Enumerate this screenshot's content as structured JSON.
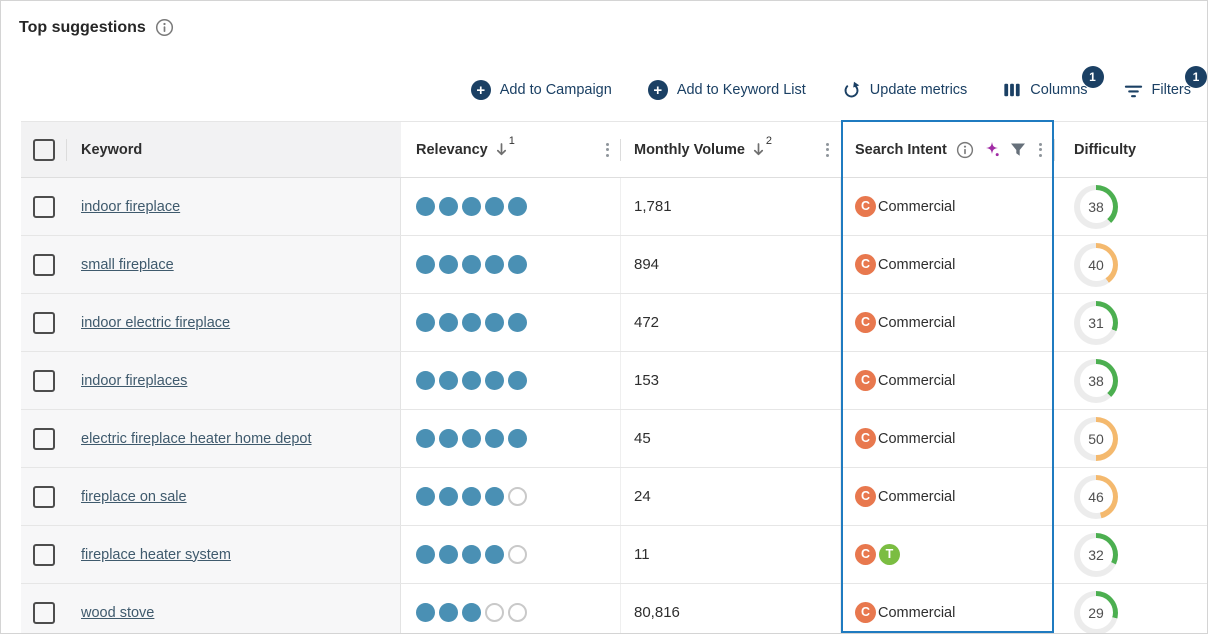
{
  "page": {
    "title": "Top suggestions"
  },
  "toolbar": {
    "add_to_campaign": "Add to Campaign",
    "add_to_keyword_list": "Add to Keyword List",
    "update_metrics": "Update metrics",
    "columns": "Columns",
    "columns_badge": "1",
    "filters": "Filters",
    "filters_badge": "1"
  },
  "table": {
    "headers": {
      "keyword": "Keyword",
      "relevancy": "Relevancy",
      "relevancy_sort_order": "1",
      "monthly_volume": "Monthly Volume",
      "monthly_volume_sort_order": "2",
      "search_intent": "Search Intent",
      "difficulty": "Difficulty"
    },
    "intent_types": {
      "commercial": {
        "letter": "C",
        "label": "Commercial",
        "color": "#E8784E"
      },
      "transactional": {
        "letter": "T",
        "label": "Transactional",
        "color": "#7BBD42"
      }
    },
    "rows": [
      {
        "keyword": "indoor fireplace",
        "relevancy": 5,
        "monthly_volume": "1,781",
        "intents": [
          "commercial"
        ],
        "intent_label": "Commercial",
        "difficulty": 38,
        "difficulty_level": "green"
      },
      {
        "keyword": "small fireplace",
        "relevancy": 5,
        "monthly_volume": "894",
        "intents": [
          "commercial"
        ],
        "intent_label": "Commercial",
        "difficulty": 40,
        "difficulty_level": "orange"
      },
      {
        "keyword": "indoor electric fireplace",
        "relevancy": 5,
        "monthly_volume": "472",
        "intents": [
          "commercial"
        ],
        "intent_label": "Commercial",
        "difficulty": 31,
        "difficulty_level": "green"
      },
      {
        "keyword": "indoor fireplaces",
        "relevancy": 5,
        "monthly_volume": "153",
        "intents": [
          "commercial"
        ],
        "intent_label": "Commercial",
        "difficulty": 38,
        "difficulty_level": "green"
      },
      {
        "keyword": "electric fireplace heater home depot",
        "relevancy": 5,
        "monthly_volume": "45",
        "intents": [
          "commercial"
        ],
        "intent_label": "Commercial",
        "difficulty": 50,
        "difficulty_level": "orange"
      },
      {
        "keyword": "fireplace on sale",
        "relevancy": 4,
        "monthly_volume": "24",
        "intents": [
          "commercial"
        ],
        "intent_label": "Commercial",
        "difficulty": 46,
        "difficulty_level": "orange"
      },
      {
        "keyword": "fireplace heater system",
        "relevancy": 4,
        "monthly_volume": "11",
        "intents": [
          "commercial",
          "transactional"
        ],
        "intent_label": "",
        "difficulty": 32,
        "difficulty_level": "green"
      },
      {
        "keyword": "wood stove",
        "relevancy": 3,
        "monthly_volume": "80,816",
        "intents": [
          "commercial"
        ],
        "intent_label": "Commercial",
        "difficulty": 29,
        "difficulty_level": "green"
      }
    ]
  },
  "colors": {
    "accent_navy": "#1B4064",
    "relevancy_dot": "#4A90B4",
    "difficulty_green": "#4CAF50",
    "difficulty_orange": "#F4B96E",
    "difficulty_track": "#ECECEC",
    "intent_column_highlight": "#1F7BC0",
    "sparkle_purple": "#A12CA5"
  },
  "icons": {
    "title_info": "info-icon",
    "add": "plus-circle-icon",
    "update": "refresh-icon",
    "columns": "columns-icon",
    "filters": "filter-lines-icon",
    "sort": "arrow-down-icon",
    "menu": "kebab-menu-icon",
    "intent_info": "info-icon",
    "intent_ai": "sparkle-icon",
    "intent_filter": "funnel-icon"
  }
}
